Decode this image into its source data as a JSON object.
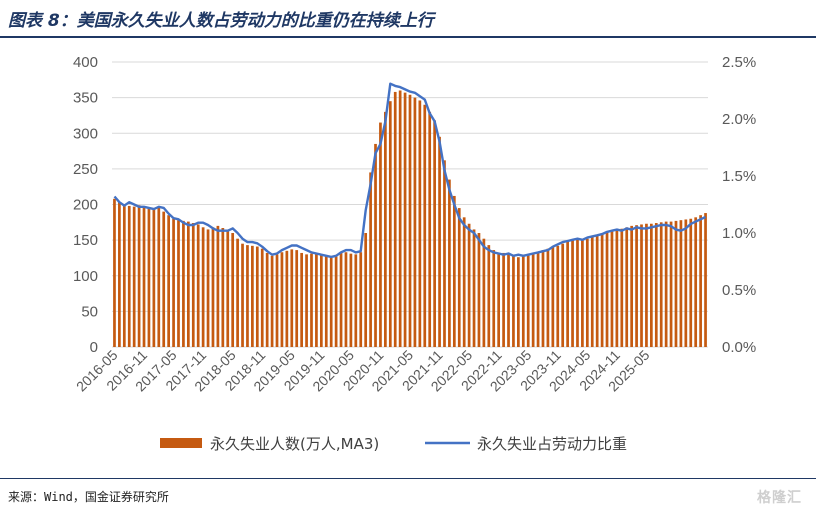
{
  "header": {
    "title": "图表 8：美国永久失业人数占劳动力的比重仍在持续上行"
  },
  "footer": {
    "source": "来源：Wind，国金证券研究所",
    "watermark": "格隆汇"
  },
  "colors": {
    "bar": "#c55a11",
    "line": "#4472c4",
    "title": "#1f3864"
  },
  "chart_data": {
    "type": "bar",
    "title": "",
    "xlabel": "",
    "ylabel": "",
    "ylim": [
      0,
      400
    ],
    "y2lim": [
      0,
      0.025
    ],
    "y_ticks": [
      "0",
      "50",
      "100",
      "150",
      "200",
      "250",
      "300",
      "350",
      "400"
    ],
    "y2_ticks": [
      "0.0%",
      "0.5%",
      "1.0%",
      "1.5%",
      "2.0%",
      "2.5%"
    ],
    "x_tick_labels": [
      "2016-05",
      "2016-11",
      "2017-05",
      "2017-11",
      "2018-05",
      "2018-11",
      "2019-05",
      "2019-11",
      "2020-05",
      "2020-11",
      "2021-05",
      "2021-11",
      "2022-05",
      "2022-11",
      "2023-05",
      "2023-11",
      "2024-05",
      "2024-11",
      "2025-05"
    ],
    "legend": [
      "永久失业人数(万人,MA3)",
      "永久失业占劳动力比重"
    ],
    "series": [
      {
        "name": "永久失业人数(万人,MA3)",
        "type": "bar",
        "axis": "left",
        "values": [
          208,
          203,
          200,
          198,
          197,
          199,
          197,
          196,
          195,
          197,
          190,
          185,
          180,
          178,
          177,
          176,
          174,
          172,
          168,
          165,
          168,
          170,
          167,
          163,
          160,
          152,
          145,
          143,
          142,
          141,
          138,
          132,
          128,
          130,
          133,
          135,
          137,
          136,
          132,
          130,
          131,
          132,
          130,
          127,
          125,
          127,
          132,
          133,
          131,
          130,
          133,
          160,
          245,
          285,
          315,
          330,
          345,
          358,
          360,
          357,
          354,
          350,
          346,
          340,
          330,
          318,
          295,
          262,
          235,
          212,
          195,
          182,
          173,
          165,
          160,
          152,
          143,
          136,
          132,
          132,
          132,
          128,
          126,
          127,
          130,
          132,
          133,
          136,
          138,
          140,
          142,
          145,
          148,
          150,
          152,
          150,
          152,
          155,
          157,
          160,
          162,
          164,
          165,
          166,
          168,
          170,
          171,
          172,
          173,
          173,
          174,
          175,
          176,
          176,
          177,
          178,
          179,
          180,
          182,
          185,
          188
        ]
      },
      {
        "name": "永久失业占劳动力比重",
        "type": "line",
        "axis": "right",
        "values": [
          0.0132,
          0.0127,
          0.0124,
          0.0127,
          0.0125,
          0.0123,
          0.0123,
          0.0122,
          0.0121,
          0.0123,
          0.0122,
          0.0117,
          0.0113,
          0.0112,
          0.0109,
          0.0107,
          0.0107,
          0.0109,
          0.0109,
          0.0107,
          0.0104,
          0.0102,
          0.0102,
          0.0102,
          0.0104,
          0.01,
          0.0095,
          0.0092,
          0.0092,
          0.0091,
          0.0088,
          0.0084,
          0.0081,
          0.0082,
          0.0085,
          0.0087,
          0.0089,
          0.0089,
          0.0087,
          0.0085,
          0.0083,
          0.0082,
          0.0081,
          0.008,
          0.0079,
          0.008,
          0.0083,
          0.0085,
          0.0085,
          0.0083,
          0.0084,
          0.012,
          0.0143,
          0.017,
          0.0178,
          0.0198,
          0.0231,
          0.0229,
          0.0228,
          0.0226,
          0.0224,
          0.0223,
          0.022,
          0.0217,
          0.0205,
          0.0198,
          0.018,
          0.0155,
          0.0138,
          0.0125,
          0.0113,
          0.0107,
          0.0103,
          0.01,
          0.0094,
          0.0088,
          0.0085,
          0.0083,
          0.0082,
          0.0081,
          0.0082,
          0.008,
          0.0081,
          0.008,
          0.0081,
          0.0082,
          0.0083,
          0.0084,
          0.0085,
          0.0088,
          0.009,
          0.0092,
          0.0093,
          0.0094,
          0.0095,
          0.0094,
          0.0096,
          0.0097,
          0.0098,
          0.0099,
          0.0101,
          0.0102,
          0.0103,
          0.0102,
          0.0104,
          0.0103,
          0.0105,
          0.0104,
          0.0104,
          0.0105,
          0.0106,
          0.0107,
          0.0107,
          0.0106,
          0.0103,
          0.0102,
          0.0104,
          0.0108,
          0.011,
          0.0112,
          0.0114
        ]
      }
    ],
    "grid": true,
    "legend_position": "bottom"
  }
}
